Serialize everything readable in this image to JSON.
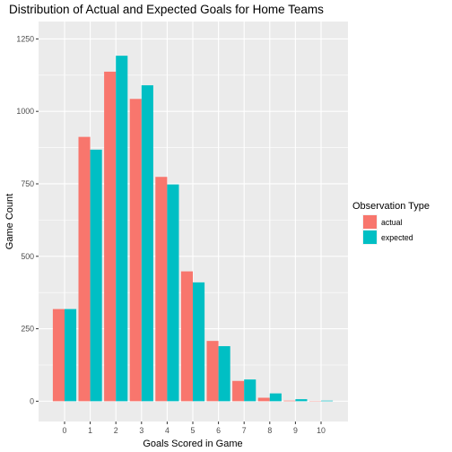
{
  "chart_data": {
    "type": "bar",
    "title": "Distribution of Actual and Expected Goals for Home Teams",
    "xlabel": "Goals Scored in Game",
    "ylabel": "Game Count",
    "categories": [
      "0",
      "1",
      "2",
      "3",
      "4",
      "5",
      "6",
      "7",
      "8",
      "9",
      "10"
    ],
    "ylim": [
      0,
      1250
    ],
    "yticks": [
      0,
      250,
      500,
      750,
      1000,
      1250
    ],
    "grid": true,
    "legend_position": "right",
    "legend_title": "Observation Type",
    "series": [
      {
        "name": "actual",
        "color": "#F8766D",
        "values": [
          318,
          912,
          1137,
          1043,
          774,
          448,
          208,
          70,
          12,
          2,
          1
        ]
      },
      {
        "name": "expected",
        "color": "#00BFC4",
        "values": [
          318,
          868,
          1192,
          1090,
          748,
          410,
          190,
          75,
          27,
          7,
          2
        ]
      }
    ]
  }
}
